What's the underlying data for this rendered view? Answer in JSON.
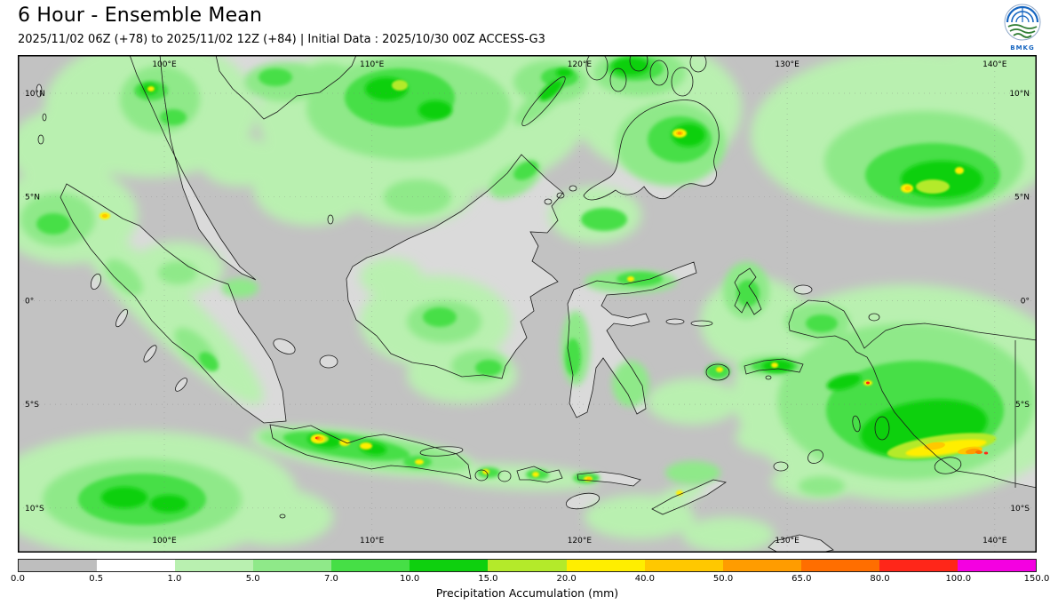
{
  "header": {
    "title": "6 Hour - Ensemble Mean",
    "subtitle": "2025/11/02 06Z (+78) to 2025/11/02 12Z (+84) | Initial Data : 2025/10/30 00Z ACCESS-G3",
    "logo_text": "BMKG"
  },
  "map": {
    "lon_ticks": [
      "100°E",
      "110°E",
      "120°E",
      "130°E",
      "140°E"
    ],
    "lat_ticks": [
      "10°N",
      "5°N",
      "0°",
      "5°S",
      "10°S"
    ]
  },
  "colorbar": {
    "label": "Precipitation Accumulation (mm)",
    "tick_labels": [
      "0.0",
      "0.5",
      "1.0",
      "5.0",
      "7.0",
      "10.0",
      "15.0",
      "20.0",
      "40.0",
      "50.0",
      "65.0",
      "80.0",
      "100.0",
      "150.0"
    ],
    "levels_mm": [
      0.0,
      0.5,
      1.0,
      5.0,
      7.0,
      10.0,
      15.0,
      20.0,
      40.0,
      50.0,
      65.0,
      80.0,
      100.0,
      150.0
    ],
    "segment_colors": [
      "#bebebe",
      "#ffffff",
      "#b9f0b0",
      "#8fe989",
      "#46df46",
      "#0ed00e",
      "#b4ea2a",
      "#ffee00",
      "#ffc800",
      "#ff9c00",
      "#ff6e00",
      "#ff2619",
      "#f400e1"
    ]
  },
  "map_colors": {
    "sea_below_threshold": "#c2c2c2",
    "land_dry": "#dadada",
    "coastline": "#1b1b1b"
  }
}
